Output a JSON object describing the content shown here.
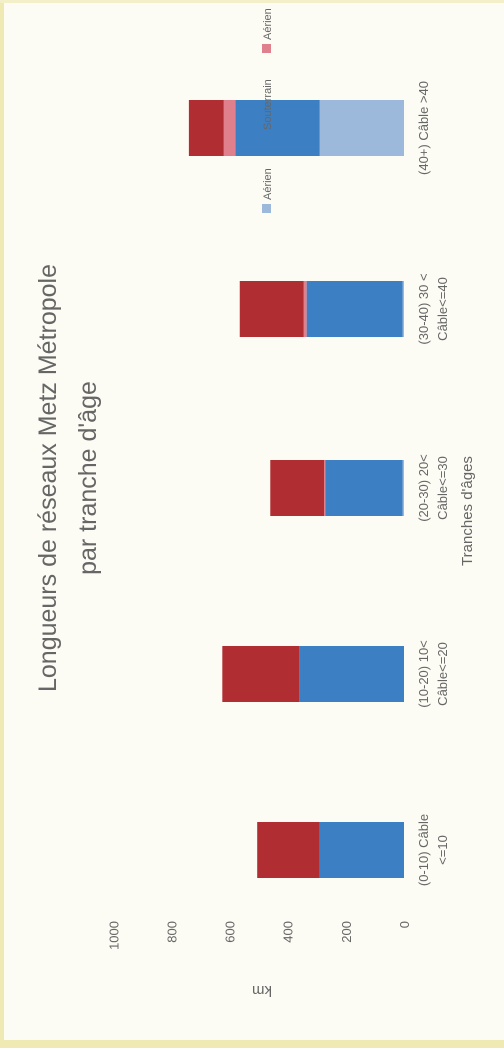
{
  "chart_data": {
    "type": "bar",
    "orientation": "vertical stacked, page rotated 90° counter-clockwise",
    "title": "Longueurs de réseaux Metz Métropole",
    "subtitle": "par tranche d'âge",
    "xlabel": "Tranches d'âges",
    "ylabel": "km",
    "ylim": [
      0,
      1000
    ],
    "yticks": [
      0,
      200,
      400,
      600,
      800,
      1000
    ],
    "grid": false,
    "legend_position": "right",
    "categories": [
      {
        "line1": "(0-10) Câble",
        "line2": "<=10"
      },
      {
        "line1": "(10-20) 10<",
        "line2": "Câble<=20"
      },
      {
        "line1": "(20-30) 20<",
        "line2": "Câble<=30"
      },
      {
        "line1": "(30-40) 30 <",
        "line2": "Câble<=40"
      },
      {
        "line1": "(40+) Câble >40",
        "line2": ""
      }
    ],
    "series": [
      {
        "name": "Aérien",
        "color": "#9cb9dc",
        "values": [
          0,
          0,
          5,
          5,
          290
        ]
      },
      {
        "name": "Souterrain",
        "color": "#3d7fc3",
        "values": [
          290,
          360,
          265,
          330,
          290
        ]
      },
      {
        "name": "Aérien",
        "color": "#e0808c",
        "values": [
          0,
          0,
          5,
          10,
          40
        ]
      },
      {
        "name": "Souterrain",
        "color": "#b02e31",
        "values": [
          215,
          265,
          185,
          220,
          120
        ]
      }
    ]
  }
}
